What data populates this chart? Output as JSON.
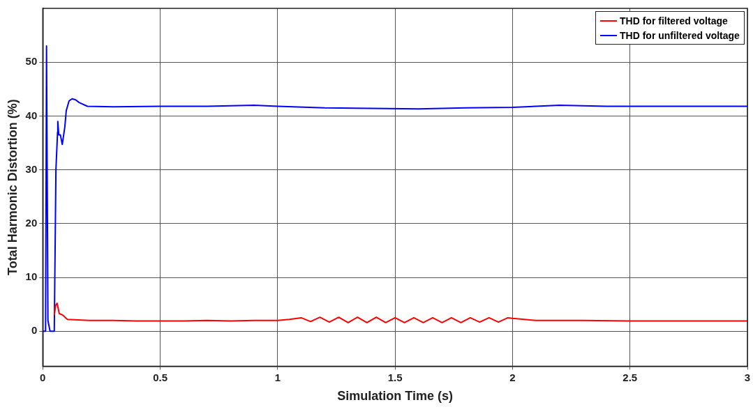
{
  "chart_data": {
    "type": "line",
    "xlabel": "Simulation Time (s)",
    "ylabel": "Total Harmonic Distortion (%)",
    "xlim": [
      0,
      3
    ],
    "ylim": [
      -6.5,
      60
    ],
    "xticks": [
      0,
      0.5,
      1,
      1.5,
      2,
      2.5,
      3
    ],
    "yticks": [
      0,
      10,
      20,
      30,
      40,
      50
    ],
    "grid": true,
    "legend": "top right",
    "marker": "none",
    "line_style": "solid",
    "series": [
      {
        "name": "THD for filtered voltage",
        "color": "#ff0000",
        "x": [
          0.049,
          0.055,
          0.061,
          0.065,
          0.07,
          0.085,
          0.095,
          0.105,
          0.15,
          0.2,
          0.3,
          0.4,
          0.5,
          0.6,
          0.7,
          0.8,
          0.9,
          1.0,
          1.05,
          1.1,
          1.14,
          1.18,
          1.22,
          1.26,
          1.3,
          1.34,
          1.38,
          1.42,
          1.46,
          1.5,
          1.54,
          1.58,
          1.62,
          1.66,
          1.7,
          1.74,
          1.78,
          1.82,
          1.86,
          1.9,
          1.94,
          1.98,
          2.0,
          2.05,
          2.1,
          2.2,
          2.3,
          2.5,
          2.7,
          2.9,
          3.0
        ],
        "values": [
          3.0,
          4.8,
          5.2,
          4.4,
          3.3,
          3.0,
          2.6,
          2.2,
          2.1,
          2.0,
          2.0,
          1.9,
          1.9,
          1.9,
          2.0,
          1.9,
          2.0,
          2.0,
          2.2,
          2.5,
          1.8,
          2.6,
          1.7,
          2.6,
          1.6,
          2.6,
          1.6,
          2.6,
          1.6,
          2.5,
          1.6,
          2.5,
          1.6,
          2.5,
          1.6,
          2.5,
          1.6,
          2.5,
          1.7,
          2.5,
          1.7,
          2.5,
          2.4,
          2.2,
          2.0,
          2.0,
          2.0,
          1.9,
          1.9,
          1.9,
          1.9
        ]
      },
      {
        "name": "THD for unfiltered voltage",
        "color": "#0000ff",
        "x": [
          0,
          0.012,
          0.016,
          0.022,
          0.031,
          0.049,
          0.056,
          0.063,
          0.064,
          0.068,
          0.075,
          0.083,
          0.094,
          0.1,
          0.112,
          0.125,
          0.14,
          0.155,
          0.19,
          0.3,
          0.5,
          0.7,
          0.9,
          1.0,
          1.2,
          1.4,
          1.6,
          1.8,
          2.0,
          2.2,
          2.4,
          2.6,
          2.8,
          3.0
        ],
        "values": [
          0,
          0,
          53,
          2,
          0,
          0,
          30,
          37,
          39,
          36.5,
          36.5,
          34.7,
          38,
          41,
          42.8,
          43.2,
          43,
          42.5,
          41.8,
          41.7,
          41.8,
          41.8,
          42.0,
          41.8,
          41.5,
          41.4,
          41.3,
          41.5,
          41.6,
          42.0,
          41.8,
          41.8,
          41.8,
          41.8
        ]
      }
    ]
  }
}
